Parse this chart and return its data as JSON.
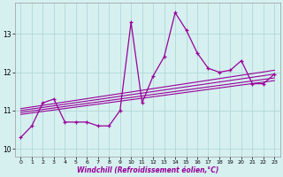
{
  "xlabel": "Windchill (Refroidissement éolien,°C)",
  "bg_color": "#d6f0f0",
  "grid_color": "#b0d8d8",
  "line_color": "#990099",
  "xlim": [
    -0.5,
    23.5
  ],
  "ylim": [
    9.8,
    13.8
  ],
  "xticks": [
    0,
    1,
    2,
    3,
    4,
    5,
    6,
    7,
    8,
    9,
    10,
    11,
    12,
    13,
    14,
    15,
    16,
    17,
    18,
    19,
    20,
    21,
    22,
    23
  ],
  "yticks": [
    10,
    11,
    12,
    13
  ],
  "main_x": [
    0,
    1,
    2,
    3,
    4,
    5,
    6,
    7,
    8,
    9,
    10,
    11,
    12,
    13,
    14,
    15,
    16,
    17,
    18,
    19,
    20,
    21,
    22,
    23
  ],
  "main_y": [
    10.3,
    10.6,
    11.2,
    11.3,
    10.7,
    10.7,
    10.7,
    10.6,
    10.6,
    11.0,
    13.3,
    11.2,
    11.9,
    12.4,
    13.55,
    13.1,
    12.5,
    12.1,
    12.0,
    12.05,
    12.3,
    11.7,
    11.7,
    11.95
  ],
  "reg_lines": [
    {
      "x": [
        0,
        23
      ],
      "y": [
        11.05,
        12.05
      ]
    },
    {
      "x": [
        0,
        23
      ],
      "y": [
        11.0,
        11.95
      ]
    },
    {
      "x": [
        0,
        23
      ],
      "y": [
        10.95,
        11.85
      ]
    },
    {
      "x": [
        0,
        23
      ],
      "y": [
        10.9,
        11.78
      ]
    }
  ]
}
